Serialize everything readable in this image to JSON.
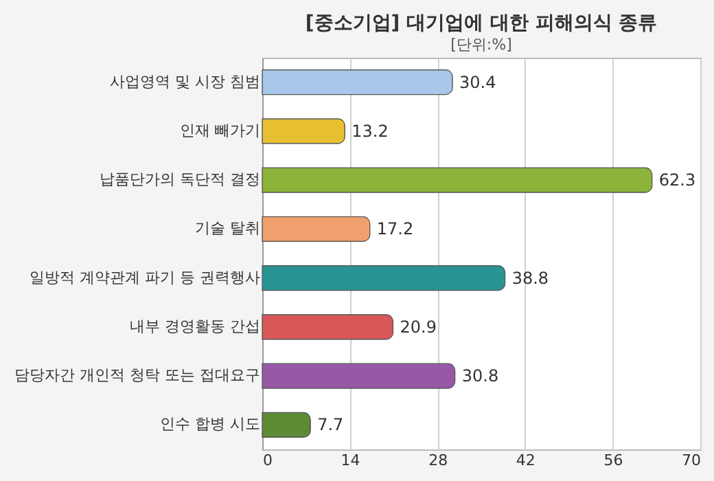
{
  "chart_data": {
    "type": "bar",
    "orientation": "horizontal",
    "title": "[중소기업] 대기업에 대한 피해의식 종류",
    "subtitle": "[단위:%]",
    "categories": [
      "사업영역 및 시장 침범",
      "인재 빼가기",
      "납품단가의 독단적 결정",
      "기술 탈취",
      "일방적 계약관계 파기 등 권력행사",
      "내부 경영활동 간섭",
      "담당자간 개인적 청탁 또는 접대요구",
      "인수 합병 시도"
    ],
    "values": [
      30.4,
      13.2,
      62.3,
      17.2,
      38.8,
      20.9,
      30.8,
      7.7
    ],
    "colors": [
      "#a8c8ea",
      "#e6c030",
      "#8cb43a",
      "#f0a06c",
      "#2a9494",
      "#d85858",
      "#9858a8",
      "#5e8a34"
    ],
    "xlim": [
      0,
      70
    ],
    "xticks": [
      0,
      14,
      28,
      42,
      56,
      70
    ],
    "grid": "x",
    "data_labels": true
  }
}
